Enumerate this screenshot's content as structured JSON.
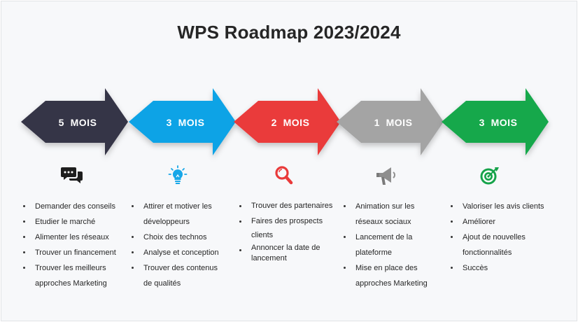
{
  "title": "WPS Roadmap 2023/2024",
  "phases": [
    {
      "duration": "5  MOIS",
      "color": "#363446",
      "icon": "chat-bubbles-icon",
      "items": [
        [
          "Demander des conseils"
        ],
        [
          "Etudier le marché"
        ],
        [
          "Alimenter les réseaux"
        ],
        [
          "Trouver un financement"
        ],
        [
          "Trouver les meilleurs",
          "approches Marketing"
        ]
      ]
    },
    {
      "duration": "3  MOIS",
      "color": "#0aa3e6",
      "icon": "lightbulb-icon",
      "items": [
        [
          "Attirer et motiver les",
          "développeurs"
        ],
        [
          "Choix des technos"
        ],
        [
          "Analyse et conception"
        ],
        [
          "Trouver des contenus",
          "de qualités"
        ]
      ]
    },
    {
      "duration": "2  MOIS",
      "color": "#ea3b3b",
      "icon": "magnifier-icon",
      "items": [
        [
          "Trouver des partenaires"
        ],
        [
          "Faires des prospects",
          "clients"
        ],
        [
          "Annoncer la date de",
          "lancement"
        ]
      ]
    },
    {
      "duration": "1  MOIS",
      "color": "#a4a4a4",
      "icon": "megaphone-icon",
      "items": [
        [
          "Animation sur les",
          "réseaux sociaux"
        ],
        [
          "Lancement de la",
          "plateforme"
        ],
        [
          "Mise en place des",
          "approches Marketing"
        ]
      ]
    },
    {
      "duration": "3  MOIS",
      "color": "#13a84c",
      "icon": "target-icon",
      "items": [
        [
          "Valoriser les avis clients"
        ],
        [
          "Améliorer"
        ],
        [
          "Ajout de nouvelles",
          "fonctionnalités"
        ],
        [
          "Succès"
        ]
      ]
    }
  ]
}
